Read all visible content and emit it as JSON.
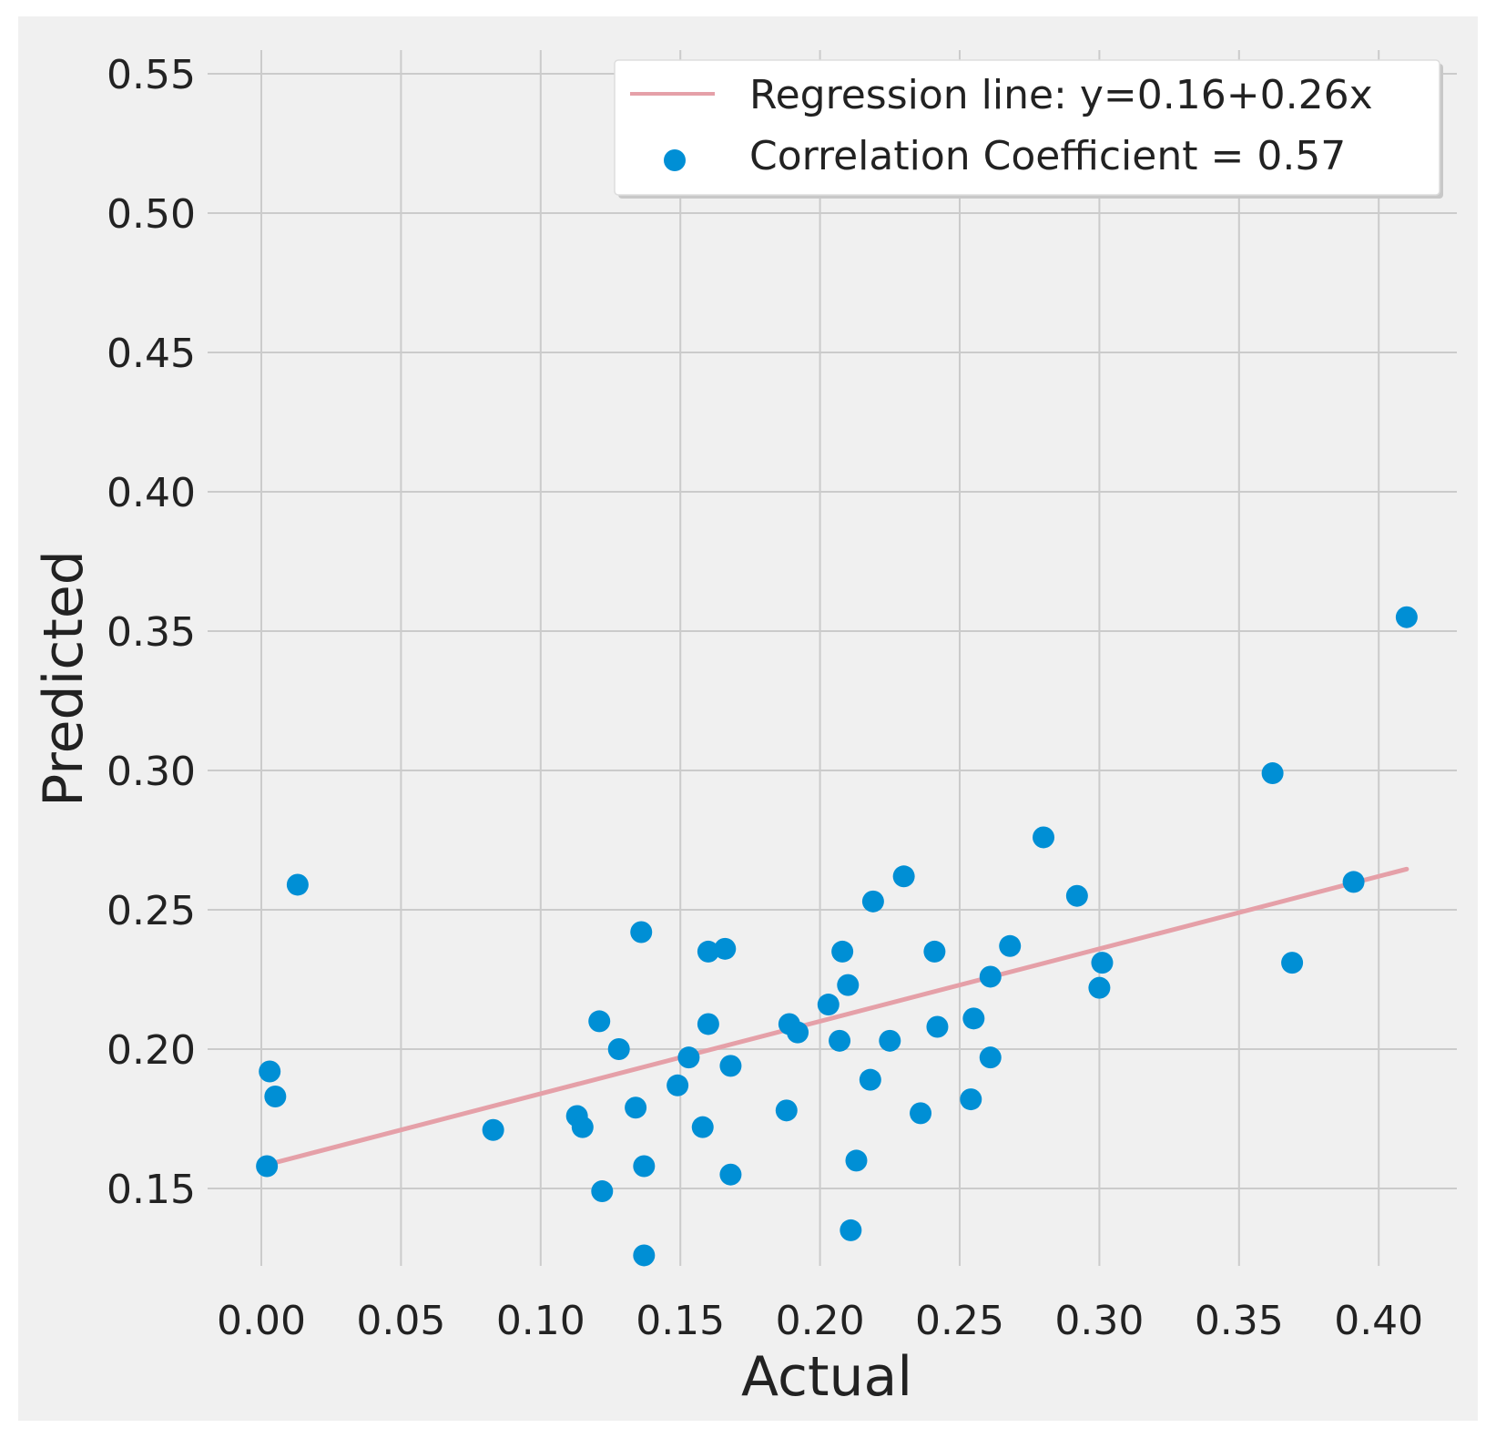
{
  "chart_data": {
    "type": "scatter",
    "title": "",
    "xlabel": "Actual",
    "ylabel": "Predicted",
    "xlim": [
      -0.02,
      0.425
    ],
    "ylim": [
      0.12,
      0.565
    ],
    "x_ticks": [
      0.0,
      0.05,
      0.1,
      0.15,
      0.2,
      0.25,
      0.3,
      0.35,
      0.4
    ],
    "x_tick_labels": [
      "0.00",
      "0.05",
      "0.10",
      "0.15",
      "0.20",
      "0.25",
      "0.30",
      "0.35",
      "0.40"
    ],
    "y_ticks": [
      0.15,
      0.2,
      0.25,
      0.3,
      0.35,
      0.4,
      0.45,
      0.5,
      0.55
    ],
    "y_tick_labels": [
      "0.15",
      "0.20",
      "0.25",
      "0.30",
      "0.35",
      "0.40",
      "0.45",
      "0.50",
      "0.55"
    ],
    "grid": true,
    "legend_position": "top-right",
    "colors": {
      "background": "#f0f0f0",
      "grid": "#cbcbcb",
      "points": "#008fd5",
      "regression": "#e5a0a8",
      "text": "#222222"
    },
    "regression": {
      "label": "Regression line: y=0.16+0.26x",
      "intercept": 0.158,
      "slope": 0.26,
      "x_start": 0.002,
      "x_end": 0.41
    },
    "series": [
      {
        "name": "Correlation Coefficient = 0.57",
        "points": [
          [
            0.002,
            0.158
          ],
          [
            0.003,
            0.192
          ],
          [
            0.005,
            0.183
          ],
          [
            0.013,
            0.259
          ],
          [
            0.083,
            0.171
          ],
          [
            0.113,
            0.176
          ],
          [
            0.115,
            0.172
          ],
          [
            0.121,
            0.21
          ],
          [
            0.122,
            0.149
          ],
          [
            0.128,
            0.2
          ],
          [
            0.134,
            0.179
          ],
          [
            0.136,
            0.242
          ],
          [
            0.137,
            0.158
          ],
          [
            0.137,
            0.126
          ],
          [
            0.149,
            0.187
          ],
          [
            0.153,
            0.197
          ],
          [
            0.158,
            0.172
          ],
          [
            0.16,
            0.235
          ],
          [
            0.16,
            0.209
          ],
          [
            0.166,
            0.236
          ],
          [
            0.168,
            0.194
          ],
          [
            0.168,
            0.155
          ],
          [
            0.188,
            0.178
          ],
          [
            0.189,
            0.209
          ],
          [
            0.192,
            0.206
          ],
          [
            0.203,
            0.216
          ],
          [
            0.207,
            0.203
          ],
          [
            0.208,
            0.235
          ],
          [
            0.21,
            0.223
          ],
          [
            0.211,
            0.135
          ],
          [
            0.213,
            0.16
          ],
          [
            0.218,
            0.189
          ],
          [
            0.219,
            0.253
          ],
          [
            0.225,
            0.203
          ],
          [
            0.23,
            0.262
          ],
          [
            0.236,
            0.177
          ],
          [
            0.241,
            0.235
          ],
          [
            0.242,
            0.208
          ],
          [
            0.254,
            0.182
          ],
          [
            0.255,
            0.211
          ],
          [
            0.261,
            0.197
          ],
          [
            0.261,
            0.226
          ],
          [
            0.268,
            0.237
          ],
          [
            0.28,
            0.276
          ],
          [
            0.292,
            0.255
          ],
          [
            0.3,
            0.222
          ],
          [
            0.301,
            0.231
          ],
          [
            0.362,
            0.299
          ],
          [
            0.369,
            0.231
          ],
          [
            0.391,
            0.26
          ],
          [
            0.41,
            0.355
          ]
        ]
      }
    ]
  }
}
